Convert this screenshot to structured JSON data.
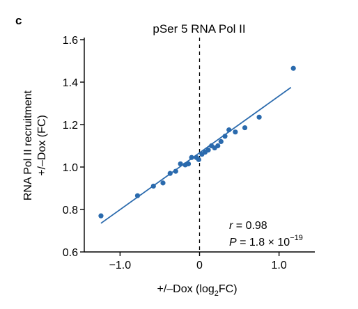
{
  "panel_label": "c",
  "chart_data": {
    "type": "scatter",
    "title": "pSer 5 RNA Pol II",
    "xlabel_prefix": "+/–Dox (log",
    "xlabel_sub": "2",
    "xlabel_suffix": "FC)",
    "ylabel_line1": "RNA Pol II recruitment",
    "ylabel_line2": "+/–Dox (FC)",
    "xlim": [
      -1.45,
      1.45
    ],
    "ylim": [
      0.6,
      1.6
    ],
    "xticks": [
      -1.0,
      0,
      1.0
    ],
    "xtick_labels": [
      "−1.0",
      "0",
      "1.0"
    ],
    "yticks": [
      0.6,
      0.8,
      1.0,
      1.2,
      1.4,
      1.6
    ],
    "ytick_labels": [
      "0.6",
      "0.8",
      "1.0",
      "1.2",
      "1.4",
      "1.6"
    ],
    "reference_line_x": 0,
    "point_color": "#2a6aad",
    "points": [
      {
        "x": -1.24,
        "y": 0.77
      },
      {
        "x": -0.78,
        "y": 0.865
      },
      {
        "x": -0.58,
        "y": 0.91
      },
      {
        "x": -0.46,
        "y": 0.925
      },
      {
        "x": -0.37,
        "y": 0.97
      },
      {
        "x": -0.3,
        "y": 0.98
      },
      {
        "x": -0.24,
        "y": 1.015
      },
      {
        "x": -0.18,
        "y": 1.01
      },
      {
        "x": -0.14,
        "y": 1.015
      },
      {
        "x": -0.1,
        "y": 1.045
      },
      {
        "x": -0.04,
        "y": 1.045
      },
      {
        "x": -0.01,
        "y": 1.035
      },
      {
        "x": 0.03,
        "y": 1.06
      },
      {
        "x": 0.07,
        "y": 1.07
      },
      {
        "x": 0.11,
        "y": 1.08
      },
      {
        "x": 0.15,
        "y": 1.1
      },
      {
        "x": 0.19,
        "y": 1.09
      },
      {
        "x": 0.23,
        "y": 1.1
      },
      {
        "x": 0.27,
        "y": 1.12
      },
      {
        "x": 0.32,
        "y": 1.145
      },
      {
        "x": 0.37,
        "y": 1.175
      },
      {
        "x": 0.45,
        "y": 1.165
      },
      {
        "x": 0.57,
        "y": 1.185
      },
      {
        "x": 0.75,
        "y": 1.235
      },
      {
        "x": 1.18,
        "y": 1.465
      }
    ],
    "fit_line": {
      "x": [
        -1.24,
        1.15
      ],
      "y": [
        0.735,
        1.375
      ]
    },
    "stats": {
      "r_label": "r",
      "r_value": " = 0.98",
      "p_label": "P",
      "p_value": " = 1.8 × 10",
      "p_exponent": "−19"
    }
  }
}
